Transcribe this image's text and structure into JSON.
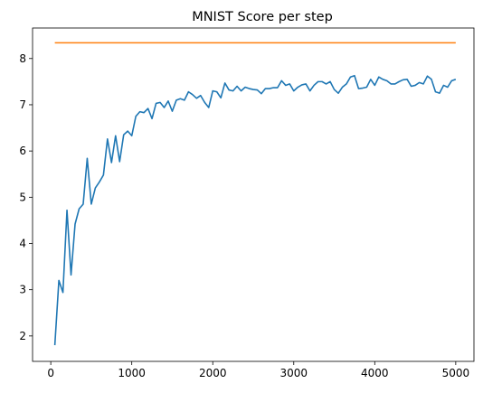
{
  "chart_data": {
    "type": "line",
    "title": "MNIST Score per step",
    "xlabel": "",
    "ylabel": "",
    "xlim": [
      -225,
      5225
    ],
    "ylim": [
      1.45,
      8.66
    ],
    "xticks": [
      0,
      1000,
      2000,
      3000,
      4000,
      5000
    ],
    "yticks": [
      2,
      3,
      4,
      5,
      6,
      7,
      8
    ],
    "grid": false,
    "legend": "none",
    "series": [
      {
        "color": "#1f77b4",
        "x": [
          50,
          100,
          150,
          200,
          250,
          300,
          350,
          400,
          450,
          500,
          550,
          600,
          650,
          700,
          750,
          800,
          850,
          900,
          950,
          1000,
          1050,
          1100,
          1150,
          1200,
          1250,
          1300,
          1350,
          1400,
          1450,
          1500,
          1550,
          1600,
          1650,
          1700,
          1750,
          1800,
          1850,
          1900,
          1950,
          2000,
          2050,
          2100,
          2150,
          2200,
          2250,
          2300,
          2350,
          2400,
          2450,
          2500,
          2550,
          2600,
          2650,
          2700,
          2750,
          2800,
          2850,
          2900,
          2950,
          3000,
          3050,
          3100,
          3150,
          3200,
          3250,
          3300,
          3350,
          3400,
          3450,
          3500,
          3550,
          3600,
          3650,
          3700,
          3750,
          3800,
          3850,
          3900,
          3950,
          4000,
          4050,
          4100,
          4150,
          4200,
          4250,
          4300,
          4350,
          4400,
          4450,
          4500,
          4550,
          4600,
          4650,
          4700,
          4750,
          4800,
          4850,
          4900,
          4950,
          5000
        ],
        "y": [
          1.8,
          3.2,
          2.94,
          4.72,
          3.32,
          4.42,
          4.75,
          4.85,
          5.84,
          4.85,
          5.2,
          5.33,
          5.48,
          6.26,
          5.75,
          6.33,
          5.77,
          6.35,
          6.43,
          6.33,
          6.75,
          6.85,
          6.83,
          6.92,
          6.7,
          7.03,
          7.05,
          6.94,
          7.08,
          6.86,
          7.1,
          7.13,
          7.1,
          7.28,
          7.22,
          7.14,
          7.2,
          7.05,
          6.94,
          7.3,
          7.28,
          7.15,
          7.47,
          7.32,
          7.3,
          7.4,
          7.3,
          7.38,
          7.35,
          7.33,
          7.32,
          7.24,
          7.35,
          7.35,
          7.37,
          7.37,
          7.52,
          7.42,
          7.45,
          7.3,
          7.38,
          7.43,
          7.45,
          7.3,
          7.42,
          7.5,
          7.5,
          7.45,
          7.5,
          7.33,
          7.25,
          7.38,
          7.45,
          7.6,
          7.63,
          7.35,
          7.36,
          7.38,
          7.55,
          7.42,
          7.6,
          7.55,
          7.52,
          7.45,
          7.45,
          7.5,
          7.54,
          7.55,
          7.4,
          7.42,
          7.48,
          7.45,
          7.62,
          7.55,
          7.28,
          7.25,
          7.42,
          7.38,
          7.52,
          7.55
        ]
      },
      {
        "color": "#ff7f0e",
        "x": [
          50,
          5000
        ],
        "y": [
          8.34,
          8.34
        ]
      }
    ]
  }
}
